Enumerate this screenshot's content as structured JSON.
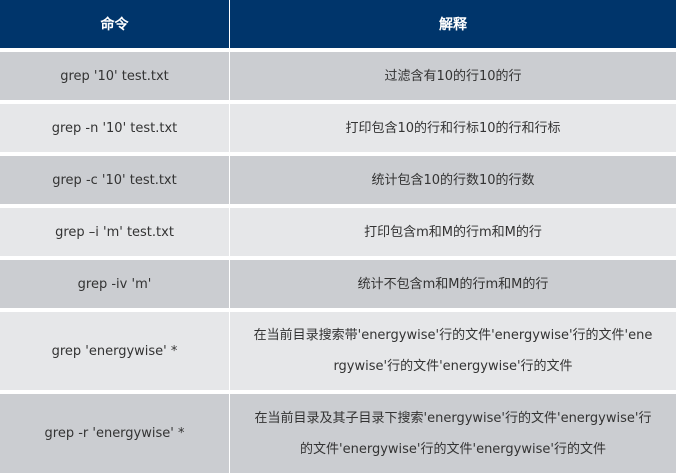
{
  "header": {
    "col1": "命令",
    "col2": "解释"
  },
  "rows": [
    {
      "command": "grep '10' test.txt",
      "lines": [
        "过滤含有10的行10的行"
      ]
    },
    {
      "command": "grep -n '10' test.txt",
      "lines": [
        "打印包含10的行和行标10的行和行标"
      ]
    },
    {
      "command": "grep -c '10' test.txt",
      "lines": [
        "统计包含10的行数10的行数"
      ]
    },
    {
      "command": "grep –i 'm' test.txt",
      "lines": [
        "打印包含m和M的行m和M的行"
      ]
    },
    {
      "command": "grep -iv 'm'",
      "lines": [
        "统计不包含m和M的行m和M的行"
      ]
    },
    {
      "command": "grep 'energywise' *",
      "lines": [
        "在当前目录搜索带'energywise'行的文件'energywise'行的文件'ene",
        "rgywise'行的文件'energywise'行的文件"
      ]
    },
    {
      "command": "grep -r 'energywise' *",
      "lines": [
        "在当前目录及其子目录下搜索'energywise'行的文件'energywise'行",
        "的文件'energywise'行的文件'energywise'行的文件"
      ]
    }
  ],
  "colors": {
    "header": "#00356b",
    "row_dark": "#cbcdd1",
    "row_light": "#e6e7e9"
  }
}
